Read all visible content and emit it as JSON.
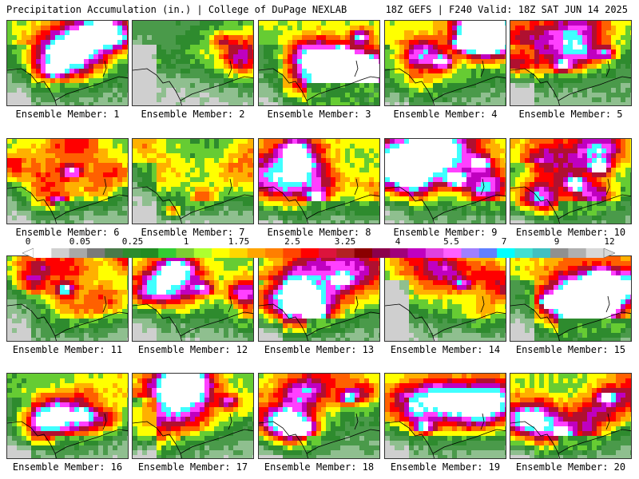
{
  "header": {
    "left": "Precipitation Accumulation (in.) | College of DuPage NEXLAB",
    "right": "18Z GEFS | F240 Valid: 18Z SAT JUN 14 2025"
  },
  "panels": [
    {
      "label": "Ensemble Member: 1",
      "seed": 11,
      "intensity": 0.85,
      "west_dry": 0.3,
      "hot": [
        [
          0.35,
          0.55
        ],
        [
          0.6,
          0.2
        ]
      ]
    },
    {
      "label": "Ensemble Member: 2",
      "seed": 23,
      "intensity": 0.45,
      "west_dry": 0.7,
      "hot": [
        [
          0.7,
          0.2
        ]
      ]
    },
    {
      "label": "Ensemble Member: 3",
      "seed": 37,
      "intensity": 0.9,
      "west_dry": 0.2,
      "hot": [
        [
          0.65,
          0.35
        ],
        [
          0.8,
          0.15
        ]
      ]
    },
    {
      "label": "Ensemble Member: 4",
      "seed": 41,
      "intensity": 0.95,
      "west_dry": 0.2,
      "hot": [
        [
          0.45,
          0.45
        ],
        [
          0.6,
          0.25
        ]
      ]
    },
    {
      "label": "Ensemble Member: 5",
      "seed": 53,
      "intensity": 0.85,
      "west_dry": 0.4,
      "hot": [
        [
          0.4,
          0.5
        ],
        [
          0.75,
          0.35
        ]
      ]
    },
    {
      "label": "Ensemble Member: 6",
      "seed": 67,
      "intensity": 0.8,
      "west_dry": 0.2,
      "hot": [
        [
          0.5,
          0.35
        ],
        [
          0.4,
          0.7
        ]
      ]
    },
    {
      "label": "Ensemble Member: 7",
      "seed": 71,
      "intensity": 0.65,
      "west_dry": 0.3,
      "hot": [
        [
          0.3,
          0.8
        ]
      ]
    },
    {
      "label": "Ensemble Member: 8",
      "seed": 83,
      "intensity": 1.0,
      "west_dry": 0.2,
      "hot": [
        [
          0.45,
          0.65
        ],
        [
          0.3,
          0.3
        ]
      ]
    },
    {
      "label": "Ensemble Member: 9",
      "seed": 97,
      "intensity": 1.0,
      "west_dry": 0.2,
      "hot": [
        [
          0.55,
          0.45
        ],
        [
          0.75,
          0.25
        ]
      ]
    },
    {
      "label": "Ensemble Member: 10",
      "seed": 101,
      "intensity": 1.0,
      "west_dry": 0.2,
      "hot": [
        [
          0.5,
          0.5
        ],
        [
          0.7,
          0.3
        ]
      ]
    },
    {
      "label": "Ensemble Member: 11",
      "seed": 113,
      "intensity": 0.8,
      "west_dry": 0.2,
      "hot": [
        [
          0.45,
          0.35
        ]
      ]
    },
    {
      "label": "Ensemble Member: 12",
      "seed": 127,
      "intensity": 0.8,
      "west_dry": 0.2,
      "hot": [
        [
          0.55,
          0.35
        ]
      ]
    },
    {
      "label": "Ensemble Member: 13",
      "seed": 131,
      "intensity": 0.85,
      "west_dry": 0.5,
      "hot": [
        [
          0.45,
          0.65
        ],
        [
          0.65,
          0.25
        ]
      ]
    },
    {
      "label": "Ensemble Member: 14",
      "seed": 149,
      "intensity": 0.7,
      "west_dry": 0.7,
      "hot": [
        [
          0.6,
          0.3
        ]
      ]
    },
    {
      "label": "Ensemble Member: 15",
      "seed": 157,
      "intensity": 1.0,
      "west_dry": 0.4,
      "hot": [
        [
          0.3,
          0.5
        ],
        [
          0.7,
          0.2
        ]
      ]
    },
    {
      "label": "Ensemble Member: 16",
      "seed": 163,
      "intensity": 0.75,
      "west_dry": 0.3,
      "hot": [
        [
          0.6,
          0.45
        ]
      ]
    },
    {
      "label": "Ensemble Member: 17",
      "seed": 173,
      "intensity": 0.75,
      "west_dry": 0.6,
      "hot": [
        [
          0.75,
          0.3
        ]
      ]
    },
    {
      "label": "Ensemble Member: 18",
      "seed": 181,
      "intensity": 0.85,
      "west_dry": 0.3,
      "hot": [
        [
          0.35,
          0.6
        ],
        [
          0.7,
          0.25
        ]
      ]
    },
    {
      "label": "Ensemble Member: 19",
      "seed": 191,
      "intensity": 0.85,
      "west_dry": 0.3,
      "hot": [
        [
          0.3,
          0.6
        ],
        [
          0.6,
          0.3
        ]
      ]
    },
    {
      "label": "Ensemble Member: 20",
      "seed": 199,
      "intensity": 0.85,
      "west_dry": 0.3,
      "hot": [
        [
          0.4,
          0.65
        ],
        [
          0.75,
          0.25
        ]
      ]
    }
  ],
  "colorbar": {
    "ticks": [
      "0",
      "0.05",
      "0.25",
      "1",
      "1.75",
      "2.5",
      "3.25",
      "4",
      "5.5",
      "7",
      "9",
      "12"
    ],
    "colors": [
      "#ffffff",
      "#d0d0d0",
      "#a8a8a8",
      "#7a7a7a",
      "#4a7a4a",
      "#2e8b2e",
      "#228b22",
      "#32cd32",
      "#7ccd32",
      "#adff2f",
      "#ffff00",
      "#ffd700",
      "#ffa500",
      "#ff7f00",
      "#ff4500",
      "#ff0000",
      "#dc143c",
      "#b22222",
      "#8b0000",
      "#8b004b",
      "#a0007a",
      "#c000c0",
      "#e040e0",
      "#ff60ff",
      "#a080ff",
      "#6080ff",
      "#00ffff",
      "#40e0d0",
      "#40c0c0",
      "#909090",
      "#b0b0b0",
      "#d8d8d8"
    ]
  }
}
